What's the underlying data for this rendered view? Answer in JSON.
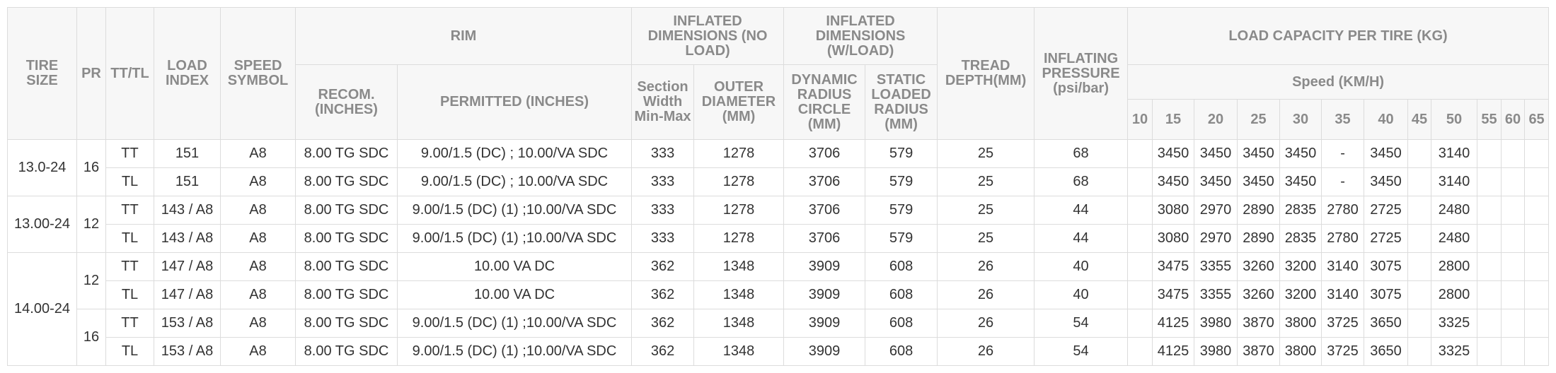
{
  "header": {
    "tire_size": "TIRE SIZE",
    "pr": "PR",
    "tt_tl": "TT/TL",
    "load_index": "LOAD INDEX",
    "speed_symbol": "SPEED SYMBOL",
    "rim": "RIM",
    "rim_recom": "RECOM. (INCHES)",
    "rim_permitted": "PERMITTED (INCHES)",
    "inflated_no_load": "INFLATED DIMENSIONS (NO LOAD)",
    "section_width": "Section Width Min-Max",
    "outer_diameter": "OUTER DIAMETER (MM)",
    "inflated_w_load": "INFLATED DIMENSIONS (W/LOAD)",
    "dynamic_radius": "DYNAMIC RADIUS CIRCLE (MM)",
    "static_radius": "STATIC LOADED RADIUS (MM)",
    "tread_depth": "TREAD DEPTH(MM)",
    "inflating_pressure": "INFLATING PRESSURE (psi/bar)",
    "load_capacity": "LOAD CAPACITY PER TIRE (KG)",
    "speed": "Speed (KM/H)",
    "speeds": [
      "10",
      "15",
      "20",
      "25",
      "30",
      "35",
      "40",
      "45",
      "50",
      "55",
      "60",
      "65"
    ]
  },
  "groups": [
    {
      "tire_size": "13.0-24",
      "pr_groups": [
        {
          "pr": "16",
          "rows": [
            {
              "tt_tl": "TT",
              "load_index": "151",
              "speed_symbol": "A8",
              "recom": "8.00 TG SDC",
              "permitted": "9.00/1.5 (DC) ; 10.00/VA SDC",
              "section_width": "333",
              "outer_diameter": "1278",
              "dynamic_radius": "3706",
              "static_radius": "579",
              "tread_depth": "25",
              "pressure": "68",
              "loads": [
                null,
                "3450",
                "3450",
                "3450",
                "3450",
                "-",
                "3450",
                null,
                "3140",
                null,
                null,
                null
              ]
            },
            {
              "tt_tl": "TL",
              "load_index": "151",
              "speed_symbol": "A8",
              "recom": "8.00 TG SDC",
              "permitted": "9.00/1.5 (DC) ; 10.00/VA SDC",
              "section_width": "333",
              "outer_diameter": "1278",
              "dynamic_radius": "3706",
              "static_radius": "579",
              "tread_depth": "25",
              "pressure": "68",
              "loads": [
                null,
                "3450",
                "3450",
                "3450",
                "3450",
                "-",
                "3450",
                null,
                "3140",
                null,
                null,
                null
              ]
            }
          ]
        }
      ]
    },
    {
      "tire_size": "13.00-24",
      "pr_groups": [
        {
          "pr": "12",
          "rows": [
            {
              "tt_tl": "TT",
              "load_index": "143 / A8",
              "speed_symbol": "A8",
              "recom": "8.00 TG SDC",
              "permitted": "9.00/1.5 (DC) (1) ;10.00/VA SDC",
              "section_width": "333",
              "outer_diameter": "1278",
              "dynamic_radius": "3706",
              "static_radius": "579",
              "tread_depth": "25",
              "pressure": "44",
              "loads": [
                null,
                "3080",
                "2970",
                "2890",
                "2835",
                "2780",
                "2725",
                null,
                "2480",
                null,
                null,
                null
              ]
            },
            {
              "tt_tl": "TL",
              "load_index": "143 / A8",
              "speed_symbol": "A8",
              "recom": "8.00 TG SDC",
              "permitted": "9.00/1.5 (DC) (1) ;10.00/VA SDC",
              "section_width": "333",
              "outer_diameter": "1278",
              "dynamic_radius": "3706",
              "static_radius": "579",
              "tread_depth": "25",
              "pressure": "44",
              "loads": [
                null,
                "3080",
                "2970",
                "2890",
                "2835",
                "2780",
                "2725",
                null,
                "2480",
                null,
                null,
                null
              ]
            }
          ]
        }
      ]
    },
    {
      "tire_size": "14.00-24",
      "pr_groups": [
        {
          "pr": "12",
          "rows": [
            {
              "tt_tl": "TT",
              "load_index": "147 / A8",
              "speed_symbol": "A8",
              "recom": "8.00 TG SDC",
              "permitted": "10.00 VA DC",
              "section_width": "362",
              "outer_diameter": "1348",
              "dynamic_radius": "3909",
              "static_radius": "608",
              "tread_depth": "26",
              "pressure": "40",
              "loads": [
                null,
                "3475",
                "3355",
                "3260",
                "3200",
                "3140",
                "3075",
                null,
                "2800",
                null,
                null,
                null
              ]
            },
            {
              "tt_tl": "TL",
              "load_index": "147 / A8",
              "speed_symbol": "A8",
              "recom": "8.00 TG SDC",
              "permitted": "10.00 VA DC",
              "section_width": "362",
              "outer_diameter": "1348",
              "dynamic_radius": "3909",
              "static_radius": "608",
              "tread_depth": "26",
              "pressure": "40",
              "loads": [
                null,
                "3475",
                "3355",
                "3260",
                "3200",
                "3140",
                "3075",
                null,
                "2800",
                null,
                null,
                null
              ]
            }
          ]
        },
        {
          "pr": "16",
          "rows": [
            {
              "tt_tl": "TT",
              "load_index": "153 / A8",
              "speed_symbol": "A8",
              "recom": "8.00 TG SDC",
              "permitted": "9.00/1.5 (DC) (1) ;10.00/VA SDC",
              "section_width": "362",
              "outer_diameter": "1348",
              "dynamic_radius": "3909",
              "static_radius": "608",
              "tread_depth": "26",
              "pressure": "54",
              "loads": [
                null,
                "4125",
                "3980",
                "3870",
                "3800",
                "3725",
                "3650",
                null,
                "3325",
                null,
                null,
                null
              ]
            },
            {
              "tt_tl": "TL",
              "load_index": "153 / A8",
              "speed_symbol": "A8",
              "recom": "8.00 TG SDC",
              "permitted": "9.00/1.5 (DC) (1) ;10.00/VA SDC",
              "section_width": "362",
              "outer_diameter": "1348",
              "dynamic_radius": "3909",
              "static_radius": "608",
              "tread_depth": "26",
              "pressure": "54",
              "loads": [
                null,
                "4125",
                "3980",
                "3870",
                "3800",
                "3725",
                "3650",
                null,
                "3325",
                null,
                null,
                null
              ]
            }
          ]
        }
      ]
    }
  ]
}
